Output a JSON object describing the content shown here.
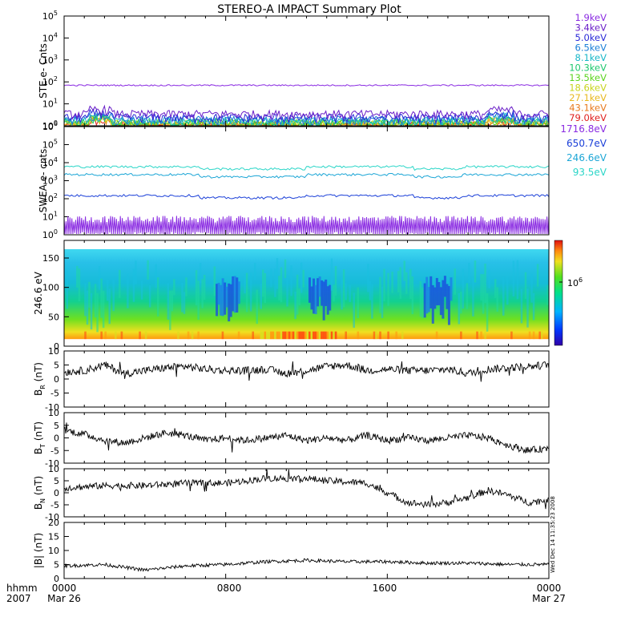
{
  "title": "STEREO-A IMPACT Summary Plot",
  "footer": {
    "hhmm_label": "hhmm",
    "year_label": "2007",
    "x_ticks": [
      "0000",
      "0800",
      "1600",
      "0000"
    ],
    "x_dates": [
      "Mar 26",
      "",
      "",
      "Mar 27"
    ],
    "stamp": "Wed Dec 14 11:35:23 2008"
  },
  "colors": {
    "ste": [
      "#8a2be2",
      "#6a1fc8",
      "#2a2ad8",
      "#1a7fd8",
      "#18b7c8",
      "#1ec86e",
      "#5cd41e",
      "#c8d41e",
      "#e8b81e",
      "#e87a1e",
      "#e0201e"
    ],
    "swea": [
      "#8a2be2",
      "#1a3fd8",
      "#1ca6d6",
      "#2bd6c8"
    ]
  },
  "chart_data": [
    {
      "id": "ste",
      "type": "line",
      "ylabel": "STE e- Cnts",
      "yscale": "log",
      "ylim": [
        1,
        100000
      ],
      "y_ticks": [
        "10^0",
        "10^1",
        "10^2",
        "10^3",
        "10^4",
        "10^5"
      ],
      "series": [
        {
          "name": "1.9keV",
          "level": 70
        },
        {
          "name": "3.4keV",
          "level": 3.5
        },
        {
          "name": "5.0keV",
          "level": 2.4
        },
        {
          "name": "6.5keV",
          "level": 1.9
        },
        {
          "name": "8.1keV",
          "level": 1.7
        },
        {
          "name": "10.3keV",
          "level": 1.5
        },
        {
          "name": "13.5keV",
          "level": 1.35
        },
        {
          "name": "18.6keV",
          "level": 1.25
        },
        {
          "name": "27.1keV",
          "level": 1.15
        },
        {
          "name": "43.1keV",
          "level": 1.08
        },
        {
          "name": "79.0keV",
          "level": 1.03
        }
      ]
    },
    {
      "id": "swea",
      "type": "line",
      "ylabel": "SWEA e- cnts",
      "yscale": "log",
      "ylim": [
        1,
        1000000
      ],
      "y_ticks": [
        "10^0",
        "10^1",
        "10^2",
        "10^3",
        "10^4",
        "10^5",
        "10^6"
      ],
      "series": [
        {
          "name": "1716.8eV",
          "level": 4
        },
        {
          "name": "650.7eV",
          "level": 150
        },
        {
          "name": "246.6eV",
          "level": 2200
        },
        {
          "name": "93.5eV",
          "level": 6000
        }
      ]
    },
    {
      "id": "spec",
      "type": "heatmap",
      "ylabel": "246.6 eV",
      "ylim": [
        0,
        180
      ],
      "y_ticks": [
        "0",
        "50",
        "100",
        "150"
      ],
      "colorbar_label": "10^6"
    },
    {
      "id": "br",
      "type": "line",
      "ylabel_main": "B",
      "ylabel_sub": "R",
      "ylabel_unit": " (nT)",
      "ylim": [
        -10,
        10
      ],
      "y_ticks": [
        "-10",
        "-5",
        "0",
        "5",
        "10"
      ],
      "series": [
        {
          "knots": [
            [
              0,
              2.5
            ],
            [
              1,
              3
            ],
            [
              2,
              5
            ],
            [
              3,
              2
            ],
            [
              4,
              3
            ],
            [
              5,
              4
            ],
            [
              6,
              4.5
            ],
            [
              7,
              3.5
            ],
            [
              8,
              3
            ],
            [
              9,
              3
            ],
            [
              10,
              3.5
            ],
            [
              11,
              2
            ],
            [
              12,
              3
            ],
            [
              13,
              4.5
            ],
            [
              14,
              5
            ],
            [
              15,
              3
            ],
            [
              16,
              3.5
            ],
            [
              17,
              3
            ],
            [
              18,
              3
            ],
            [
              19,
              3.5
            ],
            [
              20,
              2
            ],
            [
              21,
              3.5
            ],
            [
              22,
              4
            ],
            [
              23,
              4.5
            ],
            [
              24,
              5
            ]
          ]
        }
      ]
    },
    {
      "id": "bt",
      "type": "line",
      "ylabel_main": "B",
      "ylabel_sub": "T",
      "ylabel_unit": " (nT)",
      "ylim": [
        -10,
        10
      ],
      "y_ticks": [
        "-10",
        "-5",
        "0",
        "5",
        "10"
      ],
      "series": [
        {
          "knots": [
            [
              0,
              3
            ],
            [
              1,
              1.5
            ],
            [
              2,
              -1
            ],
            [
              3,
              -2
            ],
            [
              4,
              0
            ],
            [
              5,
              2
            ],
            [
              6,
              1
            ],
            [
              7,
              -1
            ],
            [
              8,
              0
            ],
            [
              9,
              -1
            ],
            [
              10,
              0
            ],
            [
              11,
              1
            ],
            [
              12,
              -1
            ],
            [
              13,
              0
            ],
            [
              14,
              -1
            ],
            [
              15,
              1
            ],
            [
              16,
              -1
            ],
            [
              17,
              0
            ],
            [
              18,
              -1
            ],
            [
              19,
              0
            ],
            [
              20,
              1
            ],
            [
              21,
              0
            ],
            [
              22,
              -3
            ],
            [
              23,
              -5
            ],
            [
              24,
              -4
            ]
          ]
        }
      ]
    },
    {
      "id": "bn",
      "type": "line",
      "ylabel_main": "B",
      "ylabel_sub": "N",
      "ylabel_unit": " (nT)",
      "ylim": [
        -10,
        10
      ],
      "y_ticks": [
        "-10",
        "-5",
        "0",
        "5",
        "10"
      ],
      "series": [
        {
          "knots": [
            [
              0,
              2
            ],
            [
              2,
              3
            ],
            [
              4,
              3
            ],
            [
              6,
              4
            ],
            [
              8,
              4
            ],
            [
              10,
              6
            ],
            [
              12,
              6
            ],
            [
              13,
              5
            ],
            [
              15,
              4
            ],
            [
              16,
              0
            ],
            [
              17,
              -4
            ],
            [
              18,
              -5
            ],
            [
              19,
              -4
            ],
            [
              20,
              -2
            ],
            [
              21,
              1
            ],
            [
              22,
              -1
            ],
            [
              23,
              -4
            ],
            [
              24,
              -3
            ]
          ]
        }
      ]
    },
    {
      "id": "bmag",
      "type": "line",
      "ylabel": "|B| (nT)",
      "ylim": [
        0,
        20
      ],
      "y_ticks": [
        "0",
        "5",
        "10",
        "15",
        "20"
      ],
      "series": [
        {
          "knots": [
            [
              0,
              4.5
            ],
            [
              2,
              5
            ],
            [
              4,
              3
            ],
            [
              6,
              4.5
            ],
            [
              8,
              5
            ],
            [
              10,
              6
            ],
            [
              12,
              6.5
            ],
            [
              14,
              6
            ],
            [
              16,
              6
            ],
            [
              18,
              5.5
            ],
            [
              20,
              5.5
            ],
            [
              22,
              5
            ],
            [
              24,
              5
            ]
          ]
        }
      ]
    }
  ]
}
